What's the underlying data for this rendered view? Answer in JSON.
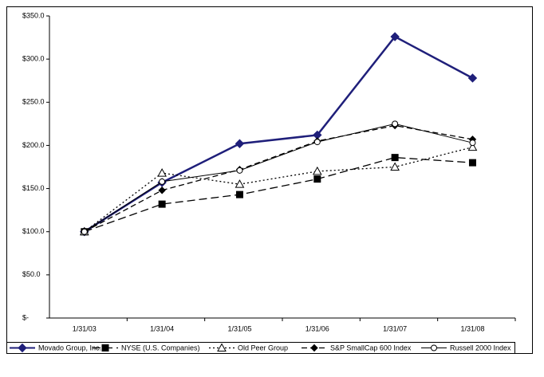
{
  "chart_data": {
    "type": "line",
    "categories": [
      "1/31/03",
      "1/31/04",
      "1/31/05",
      "1/31/06",
      "1/31/07",
      "1/31/08"
    ],
    "ylim": [
      0,
      350
    ],
    "yticks": [
      {
        "value": 0,
        "label": "$-"
      },
      {
        "value": 50,
        "label": "$50.0"
      },
      {
        "value": 100,
        "label": "$100.0"
      },
      {
        "value": 150,
        "label": "$150.0"
      },
      {
        "value": 200,
        "label": "$200.0"
      },
      {
        "value": 250,
        "label": "$250.0"
      },
      {
        "value": 300,
        "label": "$300.0"
      },
      {
        "value": 350,
        "label": "$350.0"
      }
    ],
    "grid": false,
    "legend": "bottom",
    "series": [
      {
        "name": "Movado Group, Inc.",
        "color": "#1f1f7a",
        "values": [
          100,
          157,
          202,
          212,
          326,
          278
        ]
      },
      {
        "name": "NYSE (U.S. Companies)",
        "color": "#000000",
        "values": [
          100,
          132,
          143,
          161,
          186,
          180
        ]
      },
      {
        "name": "Old Peer Group",
        "color": "#000000",
        "values": [
          100,
          168,
          155,
          170,
          175,
          198
        ]
      },
      {
        "name": "S&P SmallCap 600 Index",
        "color": "#000000",
        "values": [
          100,
          148,
          172,
          205,
          223,
          207
        ]
      },
      {
        "name": "Russell 2000 Index",
        "color": "#000000",
        "values": [
          100,
          158,
          171,
          204,
          225,
          203
        ]
      }
    ]
  }
}
